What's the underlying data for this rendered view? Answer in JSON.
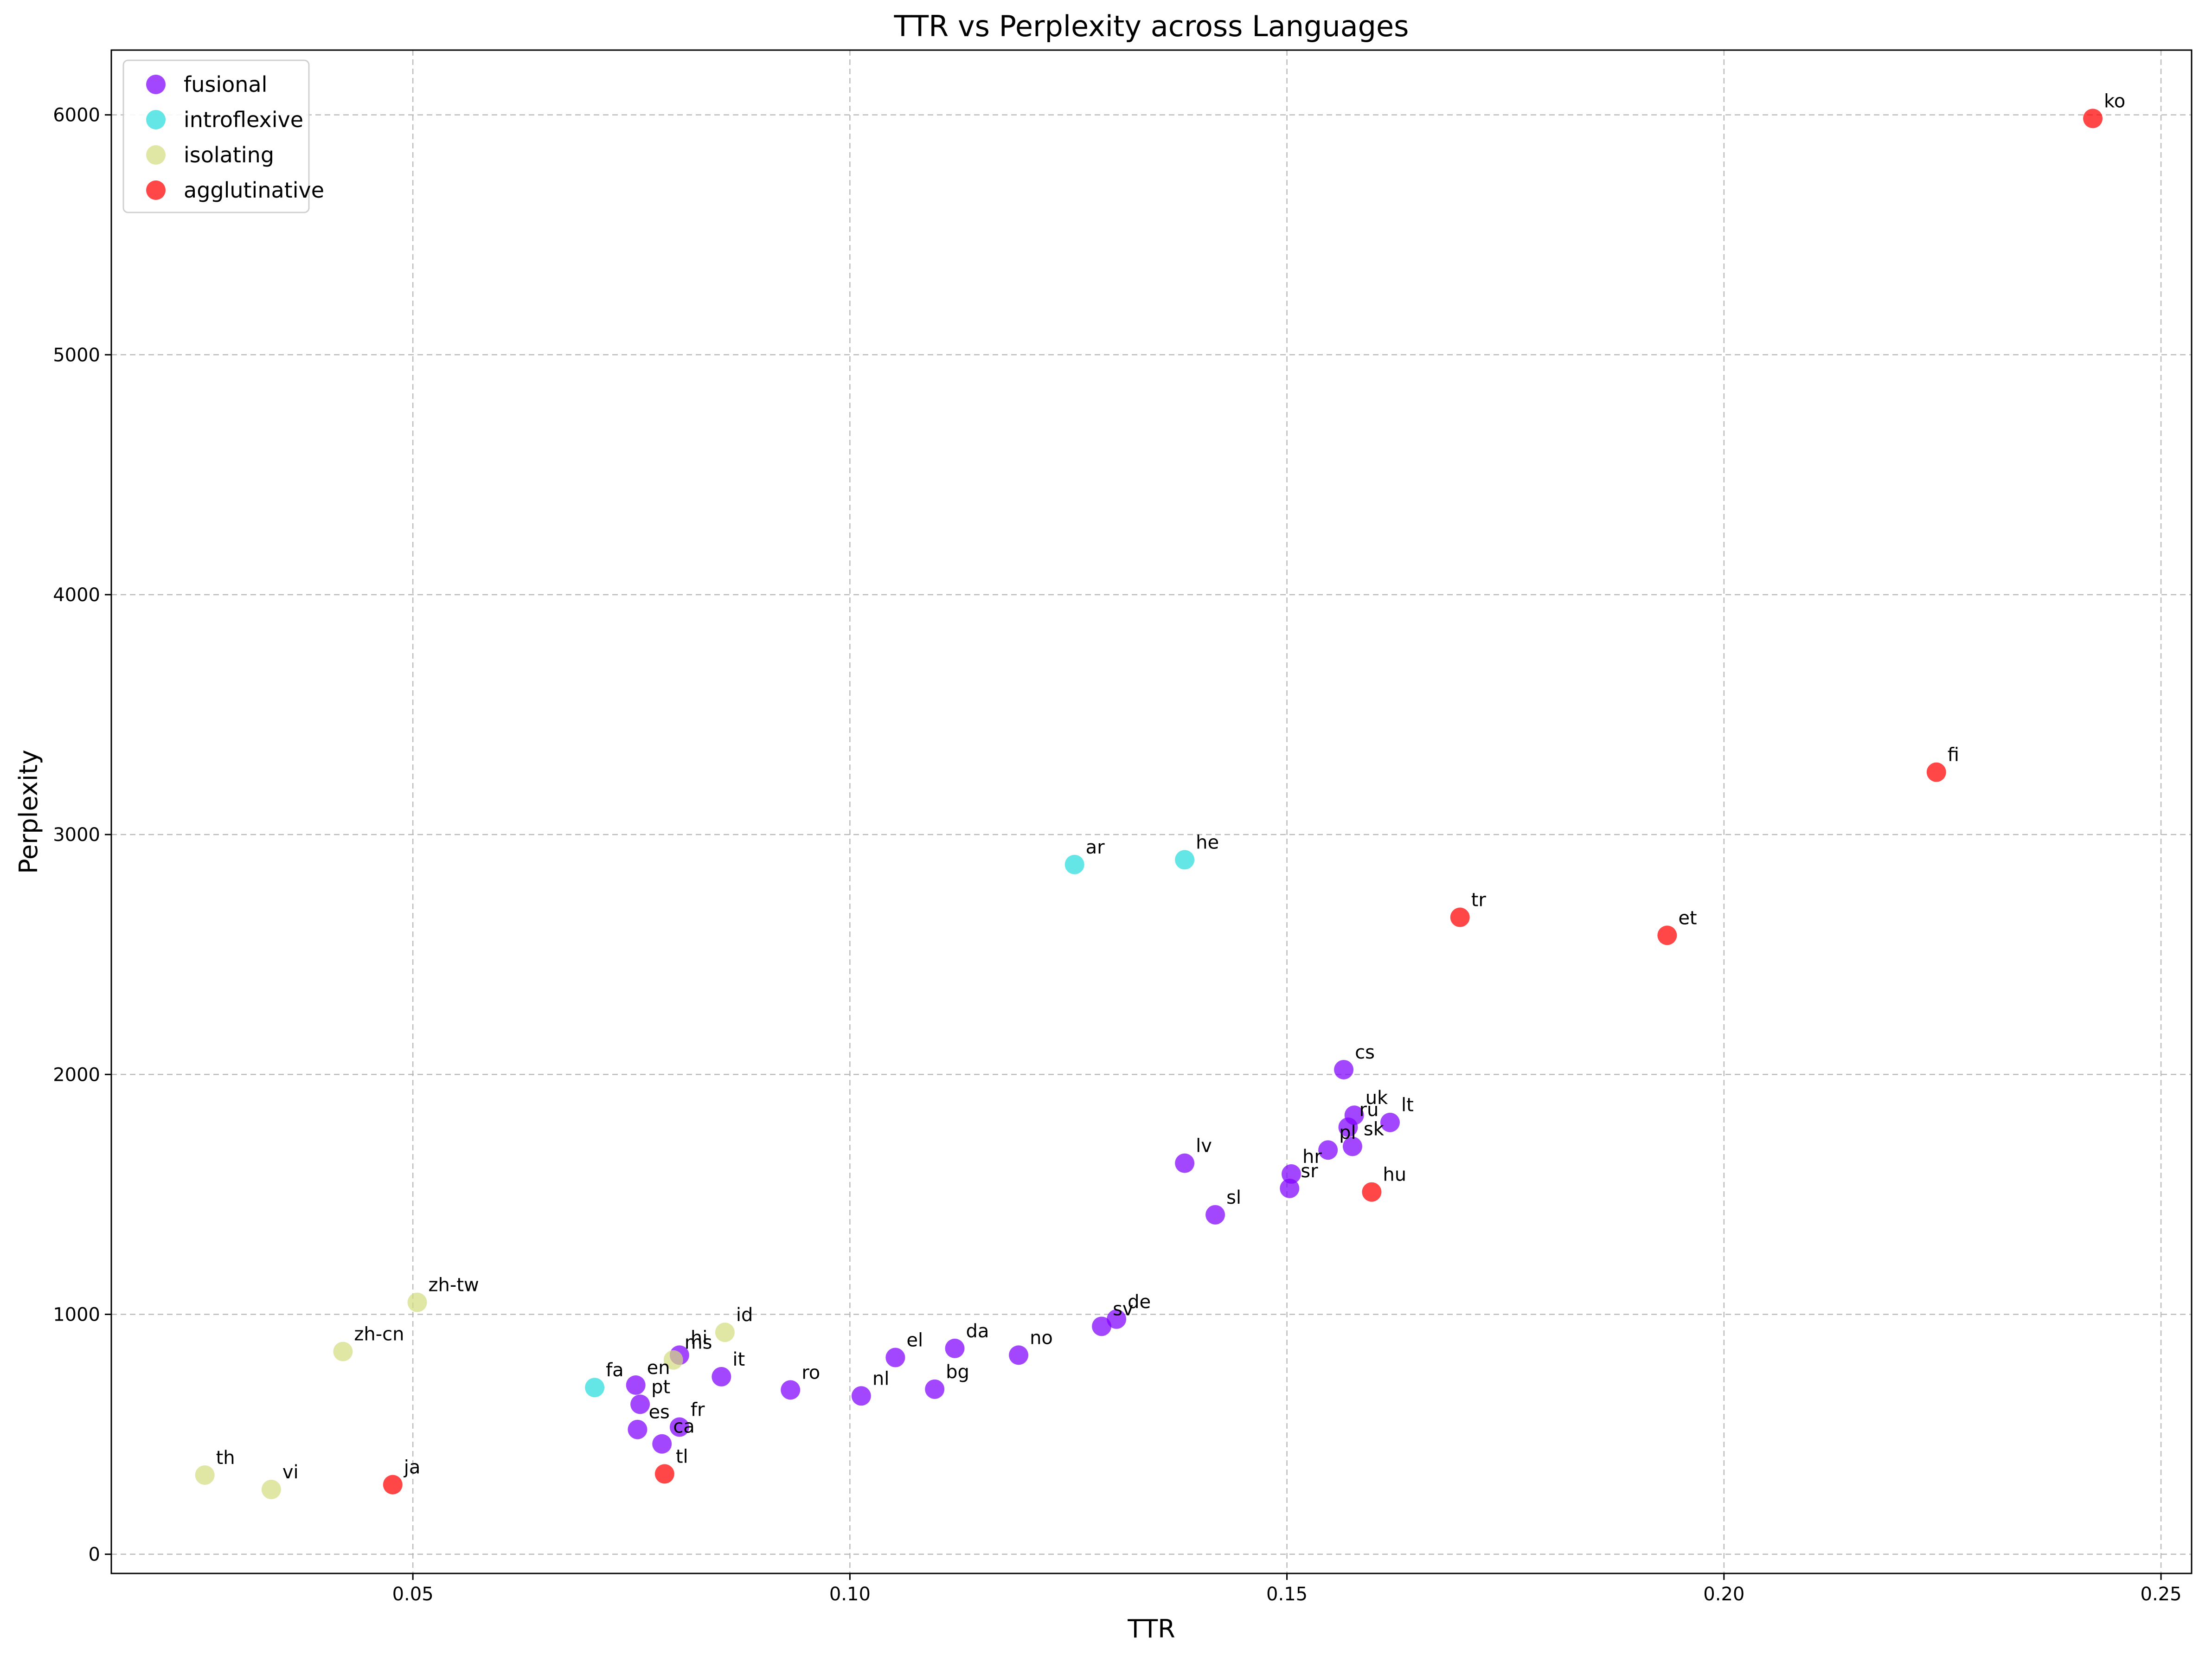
{
  "chart_data": {
    "type": "scatter",
    "title": "TTR vs Perplexity across Languages",
    "xlabel": "TTR",
    "ylabel": "Perplexity",
    "xlim": [
      0.0155,
      0.2535
    ],
    "ylim": [
      -80,
      6270
    ],
    "xticks": [
      0.05,
      0.1,
      0.15,
      0.2,
      0.25
    ],
    "xtick_labels": [
      "0.05",
      "0.10",
      "0.15",
      "0.20",
      "0.25"
    ],
    "yticks": [
      0,
      1000,
      2000,
      3000,
      4000,
      5000,
      6000
    ],
    "ytick_labels": [
      "0",
      "1000",
      "2000",
      "3000",
      "4000",
      "5000",
      "6000"
    ],
    "grid": true,
    "legend_position": "top-left",
    "series": [
      {
        "name": "fusional",
        "color": "#8000ff",
        "points": [
          {
            "label": "en",
            "x": 0.0755,
            "y": 705
          },
          {
            "label": "pt",
            "x": 0.076,
            "y": 625
          },
          {
            "label": "es",
            "x": 0.0757,
            "y": 520
          },
          {
            "label": "ca",
            "x": 0.0785,
            "y": 460
          },
          {
            "label": "fr",
            "x": 0.0805,
            "y": 530
          },
          {
            "label": "hi",
            "x": 0.0805,
            "y": 830
          },
          {
            "label": "it",
            "x": 0.0853,
            "y": 740
          },
          {
            "label": "ro",
            "x": 0.0932,
            "y": 685
          },
          {
            "label": "nl",
            "x": 0.1013,
            "y": 660
          },
          {
            "label": "el",
            "x": 0.1052,
            "y": 820
          },
          {
            "label": "bg",
            "x": 0.1097,
            "y": 688
          },
          {
            "label": "da",
            "x": 0.112,
            "y": 858
          },
          {
            "label": "no",
            "x": 0.1193,
            "y": 830
          },
          {
            "label": "sv",
            "x": 0.1288,
            "y": 950
          },
          {
            "label": "de",
            "x": 0.1305,
            "y": 980
          },
          {
            "label": "lv",
            "x": 0.1383,
            "y": 1630
          },
          {
            "label": "sl",
            "x": 0.1418,
            "y": 1415
          },
          {
            "label": "sr",
            "x": 0.1503,
            "y": 1525
          },
          {
            "label": "hr",
            "x": 0.1505,
            "y": 1585
          },
          {
            "label": "pl",
            "x": 0.1547,
            "y": 1685
          },
          {
            "label": "cs",
            "x": 0.1565,
            "y": 2020
          },
          {
            "label": "ru",
            "x": 0.157,
            "y": 1780
          },
          {
            "label": "uk",
            "x": 0.1577,
            "y": 1830
          },
          {
            "label": "sk",
            "x": 0.1575,
            "y": 1700
          },
          {
            "label": "lt",
            "x": 0.1618,
            "y": 1800
          }
        ]
      },
      {
        "name": "introflexive",
        "color": "#2adddd",
        "points": [
          {
            "label": "fa",
            "x": 0.0708,
            "y": 695
          },
          {
            "label": "ar",
            "x": 0.1257,
            "y": 2875
          },
          {
            "label": "he",
            "x": 0.1383,
            "y": 2895
          }
        ]
      },
      {
        "name": "isolating",
        "color": "#d4dd80",
        "points": [
          {
            "label": "th",
            "x": 0.0262,
            "y": 330
          },
          {
            "label": "vi",
            "x": 0.0338,
            "y": 270
          },
          {
            "label": "zh-cn",
            "x": 0.042,
            "y": 845
          },
          {
            "label": "zh-tw",
            "x": 0.0505,
            "y": 1050
          },
          {
            "label": "ms",
            "x": 0.0798,
            "y": 810
          },
          {
            "label": "id",
            "x": 0.0857,
            "y": 925
          }
        ]
      },
      {
        "name": "agglutinative",
        "color": "#ff0000",
        "points": [
          {
            "label": "ja",
            "x": 0.0477,
            "y": 290
          },
          {
            "label": "tl",
            "x": 0.0788,
            "y": 335
          },
          {
            "label": "hu",
            "x": 0.1597,
            "y": 1510
          },
          {
            "label": "tr",
            "x": 0.1698,
            "y": 2655
          },
          {
            "label": "et",
            "x": 0.1935,
            "y": 2580
          },
          {
            "label": "fi",
            "x": 0.2243,
            "y": 3260
          },
          {
            "label": "ko",
            "x": 0.2422,
            "y": 5985
          }
        ]
      }
    ]
  }
}
